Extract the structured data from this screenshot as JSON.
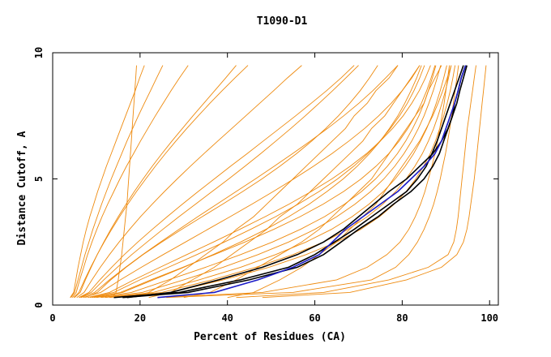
{
  "chart_data": {
    "type": "line",
    "title": "T1090-D1",
    "xlabel": "Percent of Residues (CA)",
    "ylabel": "Distance Cutoff, A",
    "xlim": [
      0,
      102
    ],
    "ylim": [
      0,
      10
    ],
    "x_ticks": [
      "0",
      "20",
      "40",
      "60",
      "80",
      "100"
    ],
    "x_tick_values": [
      0,
      20,
      40,
      60,
      80,
      100
    ],
    "y_ticks": [
      "0",
      "5",
      "10"
    ],
    "y_tick_values": [
      0,
      5,
      10
    ],
    "colors": {
      "orange": "#ee8a0e",
      "black": "#000000",
      "blue": "#1c1cc8"
    },
    "grid": false,
    "cutoffs": [
      0.3,
      0.5,
      1,
      1.5,
      2,
      2.5,
      3,
      3.5,
      4,
      4.5,
      5,
      5.5,
      6,
      6.5,
      7,
      7.5,
      8,
      8.5,
      9,
      9.5
    ],
    "series": [
      {
        "color": "orange",
        "x": [
          4,
          4.8,
          5.3,
          5.8,
          6.4,
          7.0,
          7.7,
          8.5,
          9.4,
          10.3,
          11.3,
          12.3,
          13.4,
          14.5,
          15.6,
          16.7,
          17.8,
          18.9,
          19.9,
          21
        ]
      },
      {
        "color": "orange",
        "x": [
          4.5,
          5.4,
          6.2,
          7.1,
          8.0,
          9.0,
          10.1,
          11.3,
          12.6,
          14.0,
          15.4,
          16.9,
          18.5,
          20.1,
          21.8,
          23.5,
          25.3,
          27.1,
          29.0,
          31
        ]
      },
      {
        "color": "orange",
        "x": [
          5,
          6.3,
          7.5,
          8.8,
          10.2,
          11.7,
          13.3,
          15.0,
          16.8,
          18.7,
          20.7,
          22.8,
          25.0,
          27.3,
          29.7,
          32.1,
          34.6,
          37.1,
          39.6,
          42
        ]
      },
      {
        "color": "orange",
        "x": [
          5.5,
          7.2,
          9.0,
          10.9,
          13.0,
          15.2,
          17.6,
          20.1,
          22.8,
          25.6,
          28.5,
          31.5,
          34.6,
          37.8,
          41.0,
          44.2,
          47.4,
          50.6,
          53.7,
          57
        ]
      },
      {
        "color": "orange",
        "x": [
          6,
          8.3,
          10.8,
          13.5,
          16.4,
          19.5,
          22.8,
          26.2,
          29.7,
          33.3,
          37.0,
          40.7,
          44.5,
          48.2,
          51.9,
          55.6,
          59.2,
          62.7,
          66.0,
          69
        ]
      },
      {
        "color": "orange",
        "x": [
          6.5,
          9.6,
          13.0,
          16.7,
          20.6,
          24.7,
          28.9,
          33.2,
          37.6,
          42.0,
          46.4,
          50.7,
          54.9,
          59.0,
          62.9,
          66.6,
          70.1,
          73.3,
          76.2,
          79
        ]
      },
      {
        "color": "orange",
        "x": [
          7,
          11.0,
          15.5,
          20.3,
          25.3,
          30.4,
          35.5,
          40.6,
          45.6,
          50.5,
          55.2,
          59.7,
          63.9,
          67.8,
          71.4,
          74.6,
          77.5,
          80.0,
          82.2,
          84
        ]
      },
      {
        "color": "orange",
        "x": [
          8,
          13.0,
          18.6,
          24.6,
          30.7,
          36.8,
          42.8,
          48.6,
          54.1,
          59.2,
          63.9,
          68.1,
          71.8,
          75.0,
          77.8,
          80.2,
          82.2,
          83.9,
          85.3,
          86.5
        ]
      },
      {
        "color": "orange",
        "x": [
          9,
          15.5,
          22.5,
          29.8,
          37.0,
          44.0,
          50.6,
          56.6,
          61.9,
          66.6,
          70.6,
          74.0,
          76.9,
          79.3,
          81.3,
          83.0,
          84.4,
          85.6,
          86.6,
          87.5
        ]
      },
      {
        "color": "orange",
        "x": [
          10,
          18.0,
          26.5,
          35.0,
          43.0,
          50.3,
          56.7,
          62.2,
          66.8,
          70.7,
          73.9,
          76.6,
          78.9,
          80.8,
          82.4,
          83.8,
          85.0,
          86.0,
          86.9,
          87.7
        ]
      },
      {
        "color": "orange",
        "x": [
          4.2,
          5.0,
          5.8,
          6.6,
          7.4,
          8.3,
          9.2,
          10.2,
          11.2,
          12.3,
          13.4,
          14.6,
          15.8,
          17.0,
          18.3,
          19.6,
          21.0,
          22.4,
          23.8,
          25.2
        ]
      },
      {
        "color": "orange",
        "x": [
          4.8,
          6.0,
          7.3,
          8.7,
          10.2,
          11.8,
          13.5,
          15.3,
          17.2,
          19.2,
          21.3,
          23.5,
          25.8,
          28.2,
          30.7,
          33.3,
          36.0,
          38.8,
          41.7,
          44.7
        ]
      },
      {
        "color": "orange",
        "x": [
          6.2,
          8.8,
          11.7,
          14.8,
          18.1,
          21.6,
          25.2,
          28.9,
          32.7,
          36.5,
          40.3,
          44.0,
          47.6,
          51.1,
          54.5,
          57.8,
          61.0,
          64.1,
          67.1,
          70
        ]
      },
      {
        "color": "orange",
        "x": [
          8.5,
          14.0,
          20.0,
          26.5,
          33.0,
          39.3,
          45.3,
          51.0,
          56.2,
          61.0,
          65.2,
          68.9,
          72.1,
          74.9,
          77.3,
          79.4,
          81.2,
          82.7,
          84.0,
          85.1
        ]
      },
      {
        "color": "orange",
        "x": [
          11,
          20.5,
          30.0,
          39.0,
          47.0,
          54.0,
          60.0,
          65.0,
          69.2,
          72.8,
          75.8,
          78.3,
          80.4,
          82.2,
          83.7,
          85.0,
          86.1,
          87.1,
          88.0,
          88.8
        ]
      },
      {
        "color": "orange",
        "x": [
          12,
          23.0,
          33.5,
          43.0,
          51.0,
          58.0,
          63.8,
          68.5,
          72.4,
          75.7,
          78.4,
          80.7,
          82.6,
          84.2,
          85.6,
          86.8,
          87.8,
          88.7,
          89.5,
          90.2
        ]
      },
      {
        "color": "orange",
        "x": [
          13,
          25.0,
          36.5,
          46.5,
          55.0,
          62.0,
          67.6,
          72.0,
          75.6,
          78.5,
          80.9,
          82.9,
          84.6,
          86.0,
          87.2,
          88.2,
          89.1,
          89.9,
          90.6,
          91.2
        ]
      },
      {
        "color": "orange",
        "x": [
          14,
          27.0,
          39.0,
          49.5,
          58.0,
          65.0,
          70.5,
          74.8,
          78.2,
          80.9,
          83.1,
          84.9,
          86.4,
          87.6,
          88.6,
          89.5,
          90.3,
          91.0,
          91.6,
          92.1
        ]
      },
      {
        "color": "orange",
        "x": [
          13.5,
          14.5,
          15.0,
          15.4,
          15.8,
          16.1,
          16.4,
          16.7,
          17.0,
          17.2,
          17.4,
          17.6,
          17.8,
          18.0,
          18.2,
          18.4,
          18.6,
          18.8,
          19.0,
          19.2
        ]
      },
      {
        "color": "orange",
        "x": [
          17,
          22,
          27,
          31,
          35,
          39,
          42,
          46,
          49,
          52,
          55,
          58,
          61,
          64,
          67,
          69,
          72,
          74,
          77,
          79
        ]
      },
      {
        "color": "orange",
        "x": [
          22,
          27,
          32,
          37,
          41,
          45,
          49,
          52,
          56,
          59,
          62,
          65,
          68,
          71,
          73,
          76,
          78,
          80,
          82,
          84
        ]
      },
      {
        "color": "orange",
        "x": [
          30,
          36,
          42,
          47,
          52,
          57,
          61,
          64,
          67,
          70,
          73,
          75,
          77,
          79,
          81,
          83,
          85,
          86,
          87.5,
          89
        ]
      },
      {
        "color": "orange",
        "x": [
          40,
          46,
          52,
          57,
          61,
          65,
          68,
          71,
          74,
          76,
          78,
          80,
          82,
          84,
          85.5,
          87,
          88.2,
          89.3,
          90.3,
          91.2
        ]
      },
      {
        "color": "orange",
        "x": [
          24,
          48,
          65,
          72,
          76.5,
          79.5,
          81.5,
          83,
          84.2,
          85.2,
          86.0,
          86.8,
          87.5,
          88.1,
          88.6,
          89.1,
          89.6,
          90.0,
          90.4,
          90.8
        ]
      },
      {
        "color": "orange",
        "x": [
          26,
          55,
          73,
          78.5,
          81.5,
          83.5,
          85.0,
          86.2,
          87.2,
          88.0,
          88.7,
          89.3,
          89.9,
          90.4,
          90.9,
          91.3,
          91.7,
          92.1,
          92.5,
          92.9
        ]
      },
      {
        "color": "orange",
        "x": [
          42,
          62,
          77,
          86,
          90.5,
          91.8,
          92.4,
          92.8,
          93.1,
          93.4,
          93.7,
          94.0,
          94.3,
          94.6,
          94.9,
          95.3,
          95.7,
          96.1,
          96.5,
          96.9
        ]
      },
      {
        "color": "orange",
        "x": [
          48,
          68,
          81,
          89,
          92.5,
          94.0,
          94.8,
          95.3,
          95.7,
          96.1,
          96.5,
          96.8,
          97.1,
          97.4,
          97.7,
          98.0,
          98.3,
          98.6,
          98.9,
          99.2
        ]
      },
      {
        "color": "orange",
        "x": [
          7.5,
          10.2,
          13.3,
          16.8,
          20.7,
          25.0,
          29.5,
          34.2,
          38.9,
          43.5,
          47.9,
          52.0,
          55.8,
          59.3,
          62.5,
          65.4,
          68.0,
          70.4,
          72.5,
          74.4
        ]
      },
      {
        "color": "orange",
        "x": [
          9.5,
          16.0,
          23.0,
          30.0,
          36.7,
          43.0,
          48.8,
          54.0,
          58.7,
          62.8,
          66.5,
          69.7,
          72.5,
          75.0,
          77.1,
          79.0,
          80.6,
          82.0,
          83.3,
          84.4
        ]
      },
      {
        "color": "black",
        "x": [
          14,
          29,
          43,
          54,
          60,
          64.5,
          69,
          73,
          77,
          81,
          83.5,
          85.5,
          86.8,
          88,
          89,
          90,
          91,
          92,
          93,
          94
        ]
      },
      {
        "color": "black",
        "x": [
          16,
          31,
          45,
          56,
          62,
          66,
          70,
          74.5,
          78,
          82,
          85,
          87,
          88.5,
          89.5,
          90.5,
          91.5,
          92.5,
          93.2,
          94,
          94.8
        ]
      },
      {
        "color": "black",
        "x": [
          17,
          27,
          38,
          48,
          56,
          62,
          66.5,
          70,
          73.5,
          77,
          81,
          84,
          87,
          89,
          90.5,
          91.5,
          92,
          92.8,
          93.5,
          94.5
        ]
      },
      {
        "color": "blue",
        "x": [
          24,
          37,
          47,
          55,
          61,
          64,
          67,
          71,
          75,
          79,
          82,
          85,
          87.5,
          89,
          90,
          91,
          92,
          92.8,
          93.5,
          94.5
        ]
      }
    ]
  }
}
